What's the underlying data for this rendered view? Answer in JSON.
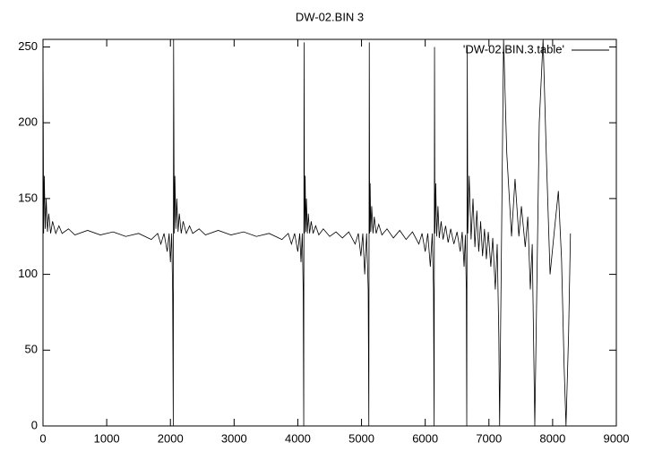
{
  "chart_data": {
    "type": "line",
    "title": "DW-02.BIN 3",
    "x": [
      0,
      10,
      20,
      35,
      50,
      70,
      90,
      120,
      150,
      200,
      250,
      300,
      400,
      500,
      700,
      900,
      1100,
      1300,
      1500,
      1700,
      1800,
      1850,
      1900,
      1950,
      1980,
      2000,
      2020,
      2035,
      2045,
      2050,
      2060,
      2070,
      2085,
      2100,
      2120,
      2140,
      2170,
      2200,
      2250,
      2300,
      2350,
      2450,
      2550,
      2750,
      2950,
      3150,
      3350,
      3550,
      3750,
      3850,
      3900,
      3950,
      4000,
      4030,
      4050,
      4070,
      4085,
      4093,
      4098,
      4105,
      4115,
      4125,
      4135,
      4150,
      4165,
      4185,
      4210,
      4240,
      4280,
      4330,
      4400,
      4500,
      4600,
      4700,
      4800,
      4900,
      4950,
      4990,
      5020,
      5050,
      5080,
      5105,
      5115,
      5122,
      5128,
      5135,
      5145,
      5160,
      5180,
      5200,
      5230,
      5270,
      5320,
      5400,
      5500,
      5600,
      5700,
      5800,
      5900,
      5950,
      6000,
      6040,
      6080,
      6110,
      6130,
      6140,
      6146,
      6152,
      6165,
      6180,
      6200,
      6220,
      6250,
      6280,
      6320,
      6360,
      6400,
      6450,
      6500,
      6550,
      6580,
      6610,
      6630,
      6645,
      6652,
      6660,
      6668,
      6690,
      6720,
      6750,
      6780,
      6810,
      6840,
      6870,
      6900,
      6930,
      6960,
      6990,
      7030,
      7060,
      7100,
      7130,
      7155,
      7168,
      7230,
      7280,
      7355,
      7410,
      7470,
      7510,
      7570,
      7610,
      7650,
      7680,
      7720,
      7790,
      7850,
      7900,
      7960,
      8030,
      8090,
      8140,
      8180,
      8210,
      8250,
      8280
    ],
    "series": [
      {
        "name": "'DW-02.BIN.3.table'",
        "color": "#000000",
        "values": [
          255,
          127,
          165,
          130,
          150,
          128,
          140,
          127,
          135,
          127,
          132,
          127,
          130,
          126,
          129,
          126,
          128,
          125,
          127,
          123,
          127,
          120,
          127,
          115,
          127,
          108,
          127,
          88,
          0,
          255,
          127,
          165,
          130,
          150,
          128,
          140,
          127,
          135,
          127,
          132,
          127,
          130,
          126,
          129,
          126,
          128,
          125,
          127,
          123,
          127,
          120,
          127,
          115,
          127,
          108,
          127,
          88,
          0,
          253,
          127,
          165,
          128,
          150,
          127,
          140,
          127,
          135,
          127,
          132,
          126,
          130,
          125,
          128,
          124,
          128,
          120,
          127,
          112,
          127,
          100,
          127,
          90,
          0,
          253,
          127,
          160,
          128,
          145,
          127,
          138,
          127,
          133,
          126,
          130,
          124,
          129,
          123,
          128,
          120,
          127,
          115,
          127,
          105,
          127,
          90,
          0,
          250,
          127,
          160,
          125,
          145,
          124,
          135,
          123,
          132,
          121,
          130,
          120,
          128,
          115,
          128,
          105,
          126,
          90,
          0,
          250,
          127,
          165,
          123,
          150,
          118,
          142,
          115,
          135,
          112,
          130,
          110,
          128,
          105,
          124,
          90,
          120,
          60,
          0,
          255,
          180,
          125,
          163,
          125,
          145,
          118,
          138,
          90,
          120,
          0,
          200,
          255,
          180,
          100,
          130,
          155,
          110,
          40,
          0,
          60,
          127
        ]
      }
    ],
    "xlim": [
      0,
      9000
    ],
    "xticks": [
      0,
      1000,
      2000,
      3000,
      4000,
      5000,
      6000,
      7000,
      8000,
      9000
    ],
    "ylim": [
      0,
      255
    ],
    "yticks": [
      0,
      50,
      100,
      150,
      200,
      250
    ],
    "grid": false,
    "legend": "top right"
  }
}
